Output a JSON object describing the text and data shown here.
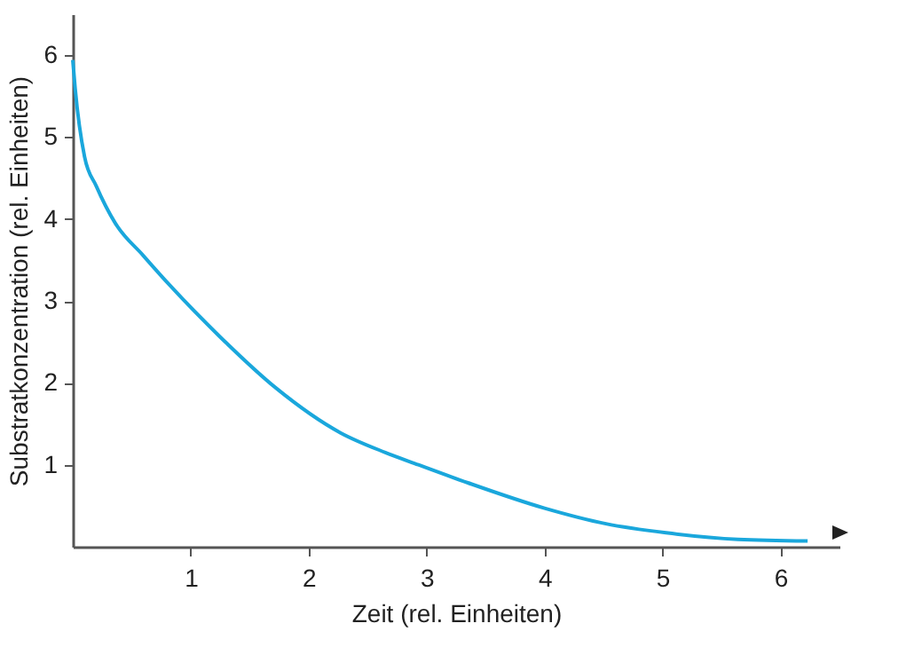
{
  "chart_data": {
    "type": "line",
    "xlabel": "Zeit (rel. Einheiten)",
    "ylabel": "Substratkonzentration (rel. Einheiten)",
    "x": [
      0,
      0.02,
      0.1,
      0.2,
      0.36,
      0.6,
      0.83,
      1.25,
      1.72,
      2.27,
      2.65,
      2.93,
      3.35,
      4.0,
      4.52,
      5.03,
      5.64,
      6.23
    ],
    "series": [
      {
        "color": "#1aa7dc",
        "values": [
          5.94,
          5.6,
          4.76,
          4.4,
          3.95,
          3.55,
          3.18,
          2.56,
          1.94,
          1.39,
          1.15,
          1.0,
          0.78,
          0.47,
          0.28,
          0.17,
          0.09,
          0.07
        ]
      }
    ],
    "xlim": [
      0,
      6.5
    ],
    "ylim": [
      0,
      6.5
    ],
    "xticks": [
      1,
      2,
      3,
      4,
      5,
      6
    ],
    "yticks": [
      1,
      2,
      3,
      4,
      5,
      6
    ],
    "grid": false,
    "legend": false,
    "marker": "none",
    "line_style": "solid"
  }
}
